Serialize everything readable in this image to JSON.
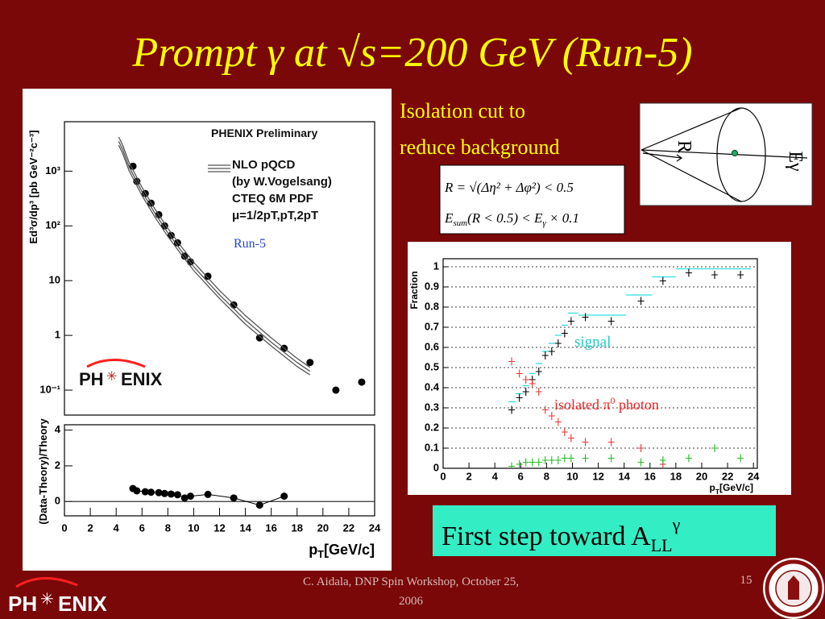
{
  "slide": {
    "title": "Prompt γ at √s=200 GeV (Run-5)",
    "text_lines": [
      "Isolation cut to",
      "reduce background"
    ],
    "formula_1": "R = √(Δη² + Δφ²) < 0.5",
    "formula_2": {
      "main": "E",
      "sub": "sum",
      "middle": "(R < 0.5) < E",
      "sub2": "γ",
      "end": " × 0.1"
    },
    "diagram": {
      "radius_label": "R",
      "energy_label": "Eγ"
    },
    "highlight": {
      "main": "First step toward A",
      "sub": "LL",
      "sup": "γ"
    },
    "footer": {
      "credit_line_1": "C. Aidala, DNP Spin Workshop, October 25,",
      "credit_line_2": "2006",
      "page": "15"
    },
    "logo": {
      "left": "PH",
      "right": "ENIX"
    }
  },
  "chart_data": [
    {
      "type": "scatter",
      "ylabel": "Ed³σ/dp³ [pb GeV⁻²c⁻³]",
      "ylog": true,
      "xlim": [
        0,
        24
      ],
      "ylim": [
        0.035,
        8000
      ],
      "yticks": [
        {
          "value": 0.1,
          "label": "10⁻¹"
        },
        1,
        10,
        {
          "value": 100,
          "label": "10²"
        },
        {
          "value": 1000,
          "label": "10³"
        }
      ],
      "annotations": [
        "PHENIX Preliminary",
        "NLO pQCD",
        "(by W.Vogelsang)",
        "CTEQ 6M PDF",
        "μ=1/2pT,pT,2pT",
        "Run-5"
      ],
      "series": [
        {
          "style": "points",
          "color": "#000000",
          "x": [
            5.3,
            5.6,
            6.25,
            6.7,
            7.3,
            7.75,
            8.25,
            8.75,
            9.3,
            9.75,
            11.1,
            13.1,
            15.1,
            17,
            19,
            21,
            23
          ],
          "values": [
            1230,
            650,
            390,
            260,
            160,
            100,
            67,
            49,
            28,
            22,
            12,
            3.6,
            0.9,
            0.58,
            0.32,
            0.1,
            0.14
          ]
        },
        {
          "style": "line",
          "color": "#555555",
          "x": [
            4.2,
            4.5,
            5,
            6,
            7,
            8,
            9,
            10,
            12,
            14,
            16,
            18,
            19
          ],
          "values": [
            4200,
            3000,
            1440,
            504,
            204,
            90,
            43,
            21.6,
            6.6,
            2.3,
            0.9,
            0.38,
            0.26
          ]
        },
        {
          "style": "line",
          "color": "#555555",
          "x": [
            4.2,
            4.5,
            5,
            6,
            7,
            8,
            9,
            10,
            12,
            14,
            16,
            18,
            19
          ],
          "values": [
            3500,
            2500,
            1200,
            420,
            170,
            75,
            36,
            18,
            5.5,
            1.9,
            0.75,
            0.32,
            0.22
          ]
        },
        {
          "style": "line",
          "color": "#555555",
          "x": [
            4.2,
            4.5,
            5,
            6,
            7,
            8,
            9,
            10,
            12,
            14,
            16,
            18,
            19
          ],
          "values": [
            2975,
            2125,
            1020,
            357,
            145,
            64,
            31,
            15.3,
            4.7,
            1.6,
            0.64,
            0.27,
            0.19
          ]
        }
      ]
    },
    {
      "type": "scatter",
      "ylabel": "(Data-Theory)/Theory",
      "xlabel": {
        "main": "p",
        "sub": "T",
        "rest": "[GeV/c]"
      },
      "xlim": [
        0,
        24
      ],
      "ylim": [
        -0.8,
        4.3
      ],
      "xticks": [
        0,
        2,
        4,
        6,
        8,
        10,
        12,
        14,
        16,
        18,
        20,
        22,
        24
      ],
      "yticks": [
        0,
        2,
        4
      ],
      "series": [
        {
          "style": "points-line",
          "color": "#000000",
          "x": [
            5.3,
            5.6,
            6.25,
            6.7,
            7.3,
            7.75,
            8.25,
            8.75,
            9.3,
            9.75,
            11.1,
            13.1,
            15.1,
            17
          ],
          "values": [
            0.73,
            0.6,
            0.55,
            0.52,
            0.5,
            0.45,
            0.42,
            0.38,
            0.2,
            0.3,
            0.4,
            0.2,
            -0.2,
            0.3
          ]
        }
      ]
    },
    {
      "type": "line",
      "ylabel": "Fraction",
      "xlabel": {
        "main": "p",
        "sub": "T",
        "rest": "[GeV/c]"
      },
      "xlim": [
        0,
        24.3
      ],
      "ylim": [
        0,
        1.04
      ],
      "xticks": [
        0,
        2,
        4,
        6,
        8,
        10,
        12,
        14,
        16,
        18,
        20,
        22,
        24
      ],
      "yticks": [
        0,
        0.1,
        0.2,
        0.3,
        0.4,
        0.5,
        0.6,
        0.7,
        0.8,
        0.9,
        1
      ],
      "grid": true,
      "annotations": [
        "signal",
        {
          "main": "isolated π",
          "sup": "0",
          "rest": " photon"
        }
      ],
      "series": [
        {
          "style": "step",
          "color": "#33dddd",
          "x": [
            5.3,
            5.9,
            6.4,
            6.9,
            7.4,
            7.9,
            8.4,
            8.9,
            9.4,
            9.9,
            11,
            13,
            15.3,
            17,
            19,
            21,
            23
          ],
          "values": [
            0.33,
            0.37,
            0.41,
            0.47,
            0.52,
            0.58,
            0.62,
            0.66,
            0.71,
            0.77,
            0.76,
            0.76,
            0.86,
            0.95,
            0.99,
            0.99,
            0.99
          ]
        },
        {
          "style": "cross",
          "color": "#000000",
          "x": [
            5.3,
            5.9,
            6.4,
            6.9,
            7.4,
            7.9,
            8.4,
            8.9,
            9.4,
            9.9,
            11,
            13,
            15.3,
            17,
            19,
            21,
            23
          ],
          "values": [
            0.29,
            0.35,
            0.38,
            0.44,
            0.48,
            0.56,
            0.58,
            0.62,
            0.67,
            0.73,
            0.75,
            0.73,
            0.83,
            0.93,
            0.97,
            0.96,
            0.96
          ]
        },
        {
          "style": "cross",
          "color": "#ee3333",
          "x": [
            5.3,
            5.9,
            6.4,
            6.9,
            7.4,
            7.9,
            8.4,
            8.9,
            9.4,
            9.9,
            11,
            13,
            15.3,
            17
          ],
          "values": [
            0.53,
            0.47,
            0.44,
            0.42,
            0.38,
            0.29,
            0.26,
            0.23,
            0.18,
            0.15,
            0.13,
            0.13,
            0.1,
            0.02
          ]
        },
        {
          "style": "cross",
          "color": "#22bb22",
          "x": [
            5.3,
            5.9,
            6.4,
            6.9,
            7.4,
            7.9,
            8.4,
            8.9,
            9.4,
            9.9,
            11,
            13,
            15.3,
            17,
            19,
            21,
            23
          ],
          "values": [
            0.01,
            0.02,
            0.03,
            0.03,
            0.03,
            0.04,
            0.04,
            0.04,
            0.05,
            0.05,
            0.05,
            0.05,
            0.03,
            0.04,
            0.05,
            0.1,
            0.05
          ]
        }
      ]
    }
  ]
}
